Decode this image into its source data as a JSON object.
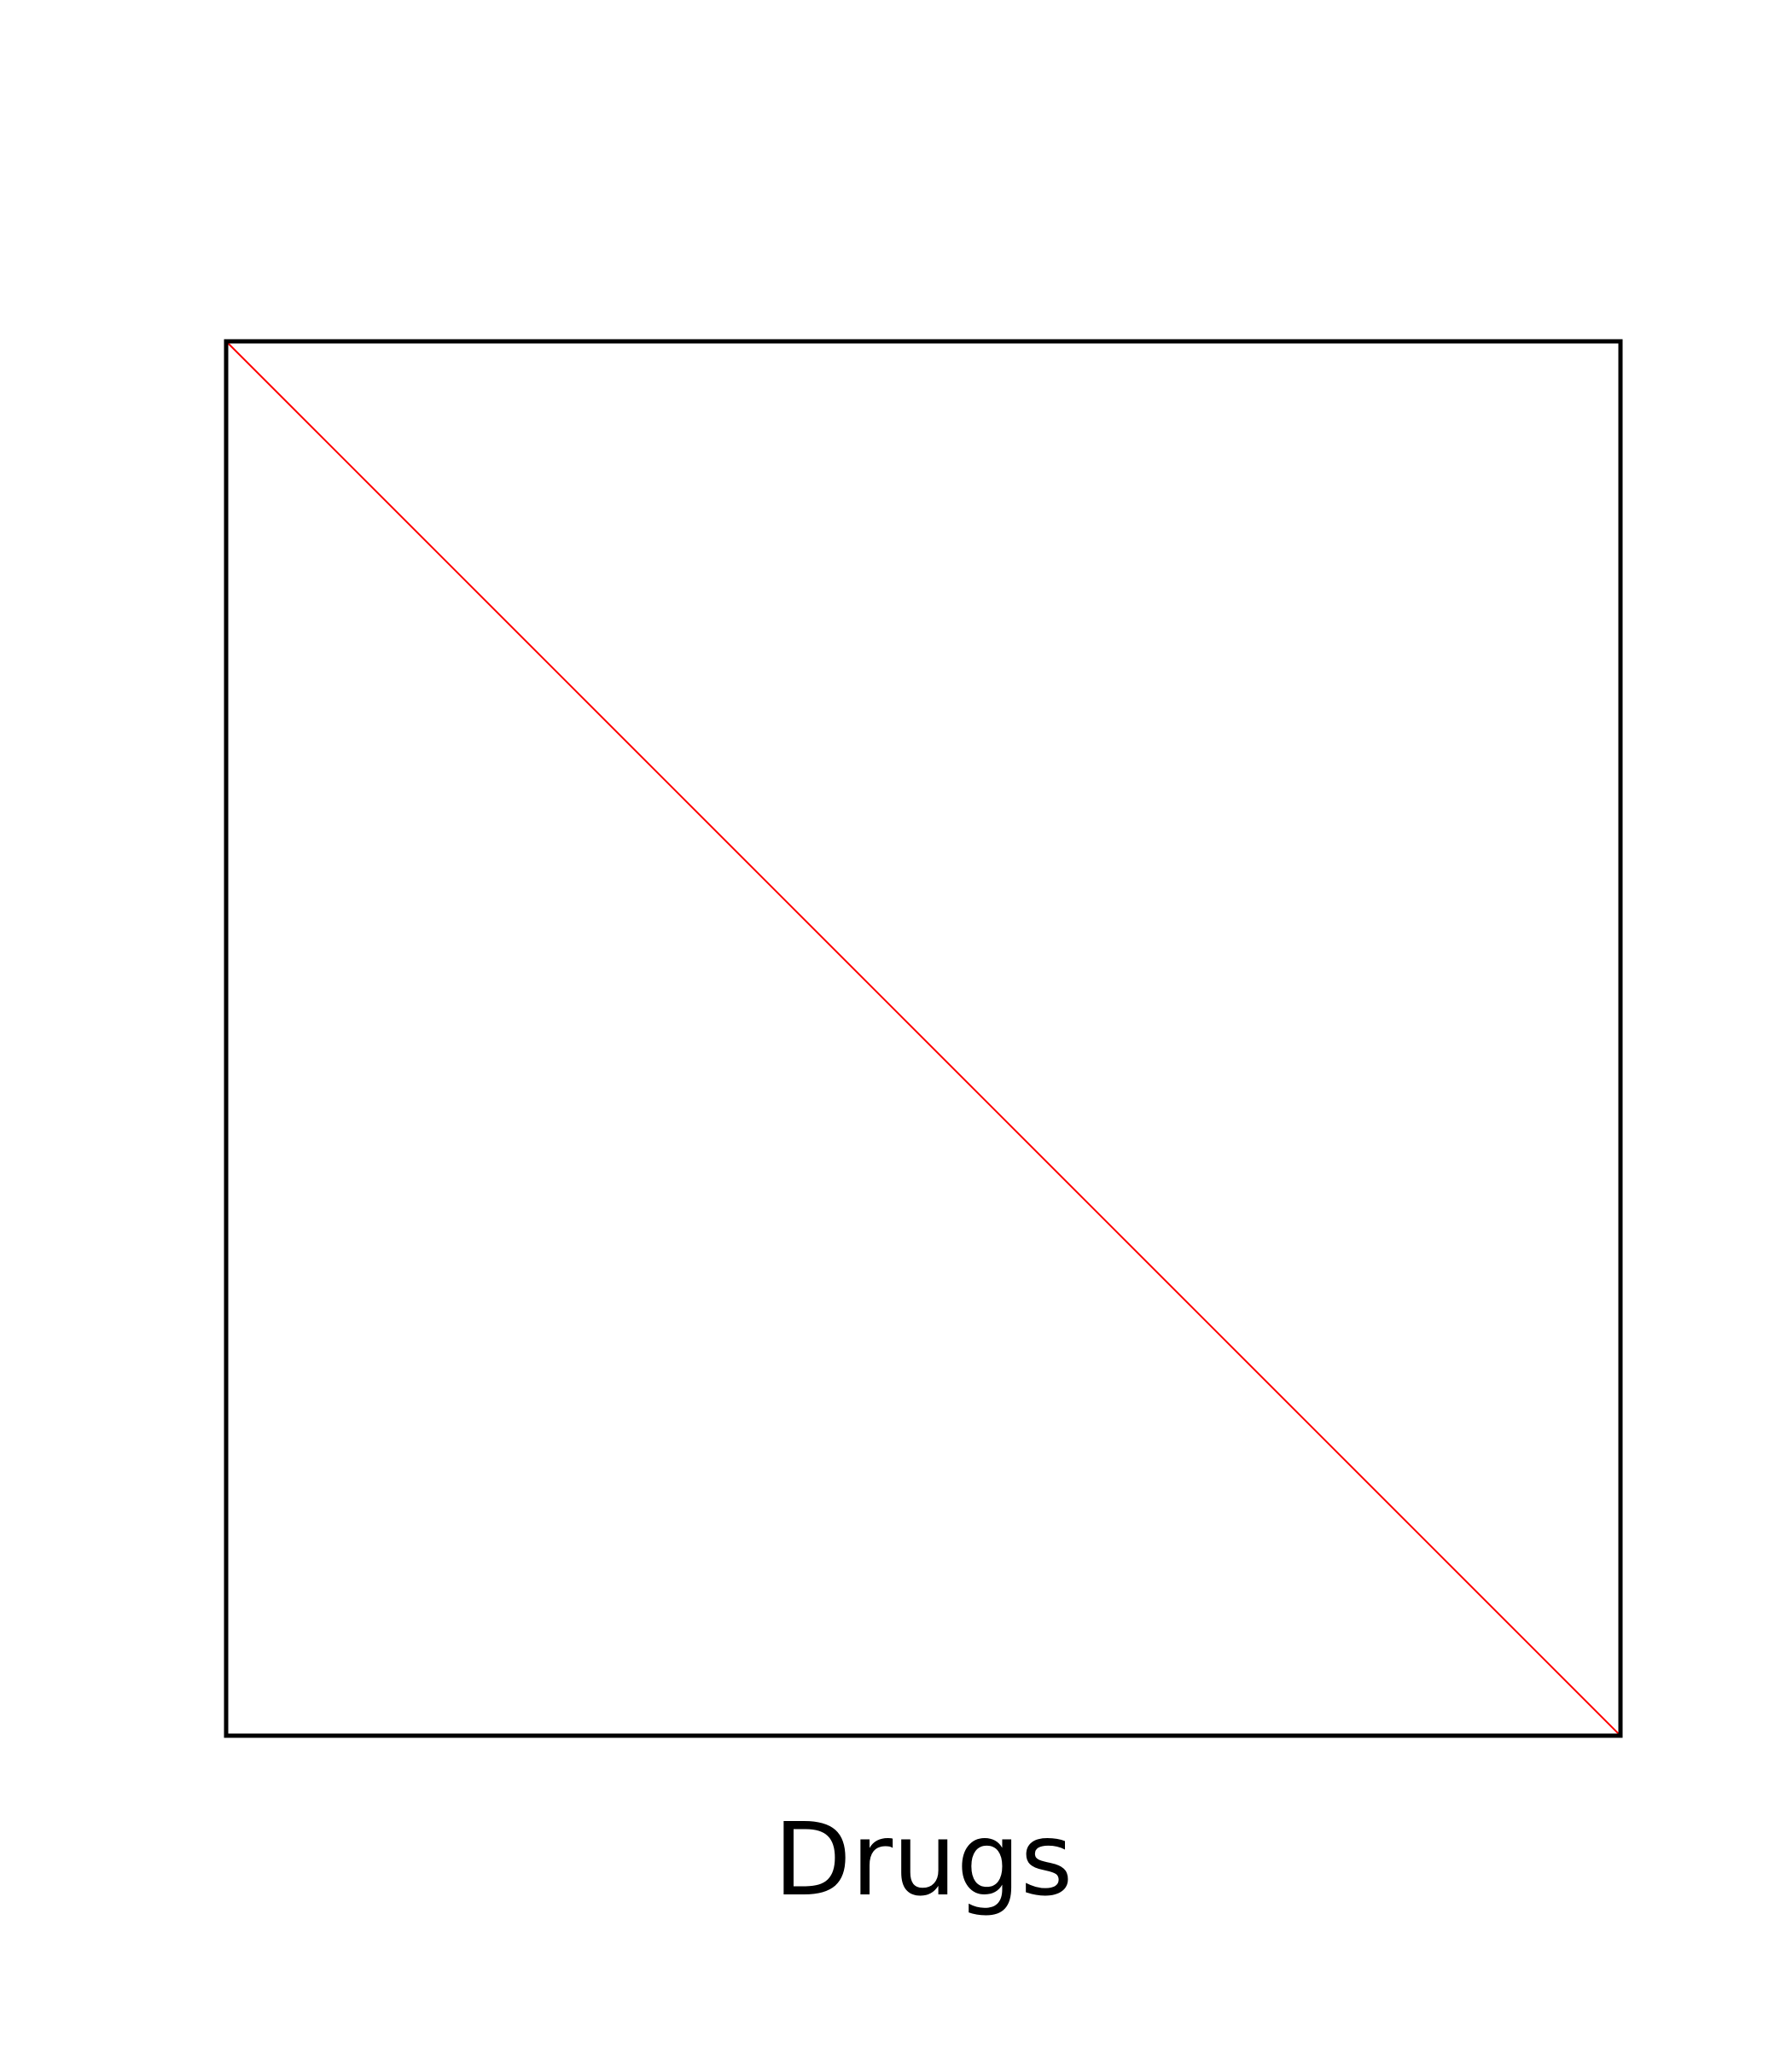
{
  "chart_data": {
    "type": "heatmap",
    "xlabel": "Drugs",
    "color": "#ff0000"
  }
}
